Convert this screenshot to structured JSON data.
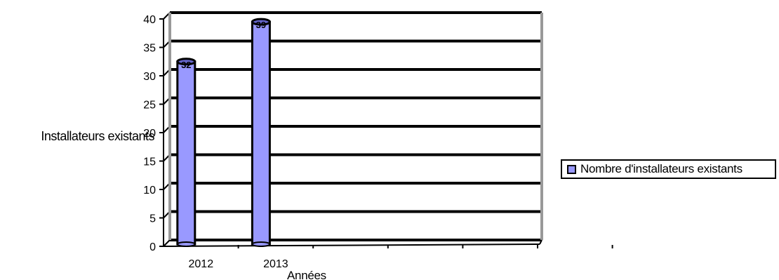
{
  "chart_data": {
    "type": "bar",
    "categories": [
      "2012",
      "2013",
      "",
      "",
      "",
      ""
    ],
    "series": [
      {
        "name": "Nombre d'installateurs existants",
        "values": [
          32,
          39,
          null,
          null,
          null,
          null
        ],
        "color": "#9999ff"
      }
    ],
    "data_labels": [
      "32",
      "39"
    ],
    "title": "",
    "xlabel": "Années",
    "ylabel": "Installateurs existants",
    "ylim": [
      0,
      40
    ],
    "yticks": [
      0,
      5,
      10,
      15,
      20,
      25,
      30,
      35,
      40
    ],
    "grid": true,
    "legend": "right",
    "bar_style": "3d-cylinder"
  }
}
